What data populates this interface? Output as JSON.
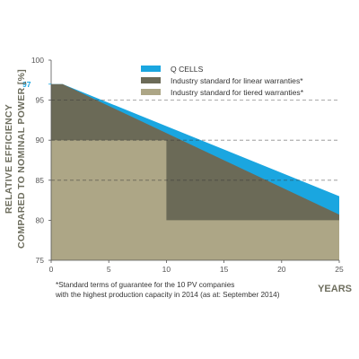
{
  "chart_data": {
    "type": "area",
    "ylabel_line1": "RELATIVE EFFICIENCY",
    "ylabel_line2": "COMPARED TO NOMINAL POWER",
    "ylabel_unit": "[%]",
    "xlabel": "YEARS",
    "xlim": [
      0,
      25
    ],
    "ylim": [
      75,
      100
    ],
    "x_ticks": [
      "0",
      "5",
      "10",
      "15",
      "20",
      "25"
    ],
    "x_tick_values": [
      0,
      5,
      10,
      15,
      20,
      25
    ],
    "y_ticks": [
      "75",
      "80",
      "85",
      "90",
      "95",
      "100"
    ],
    "y_tick_values": [
      75,
      80,
      85,
      90,
      95,
      100
    ],
    "highlight_tick": {
      "value": 97,
      "label": "97",
      "color": "#1aa6e0"
    },
    "dashed_gridlines": [
      85,
      90,
      95
    ],
    "series": [
      {
        "name": "Q CELLS",
        "color": "#1aa6e0",
        "x": [
          0,
          1,
          25
        ],
        "y": [
          97,
          97,
          83
        ]
      },
      {
        "name": "Industry standard for linear warranties*",
        "color": "#6b6a57",
        "x": [
          0,
          1,
          25
        ],
        "y": [
          97,
          97,
          80.7
        ]
      },
      {
        "name": "Industry standard for tiered warranties*",
        "color": "#ada686",
        "x": [
          0,
          10,
          10,
          25
        ],
        "y": [
          90,
          90,
          80,
          80
        ]
      }
    ],
    "legend_position": "top-right",
    "footnote_line1": "*Standard terms of guarantee for the 10 PV companies",
    "footnote_line2": "with the highest production capacity in 2014 (as at: September 2014)"
  }
}
